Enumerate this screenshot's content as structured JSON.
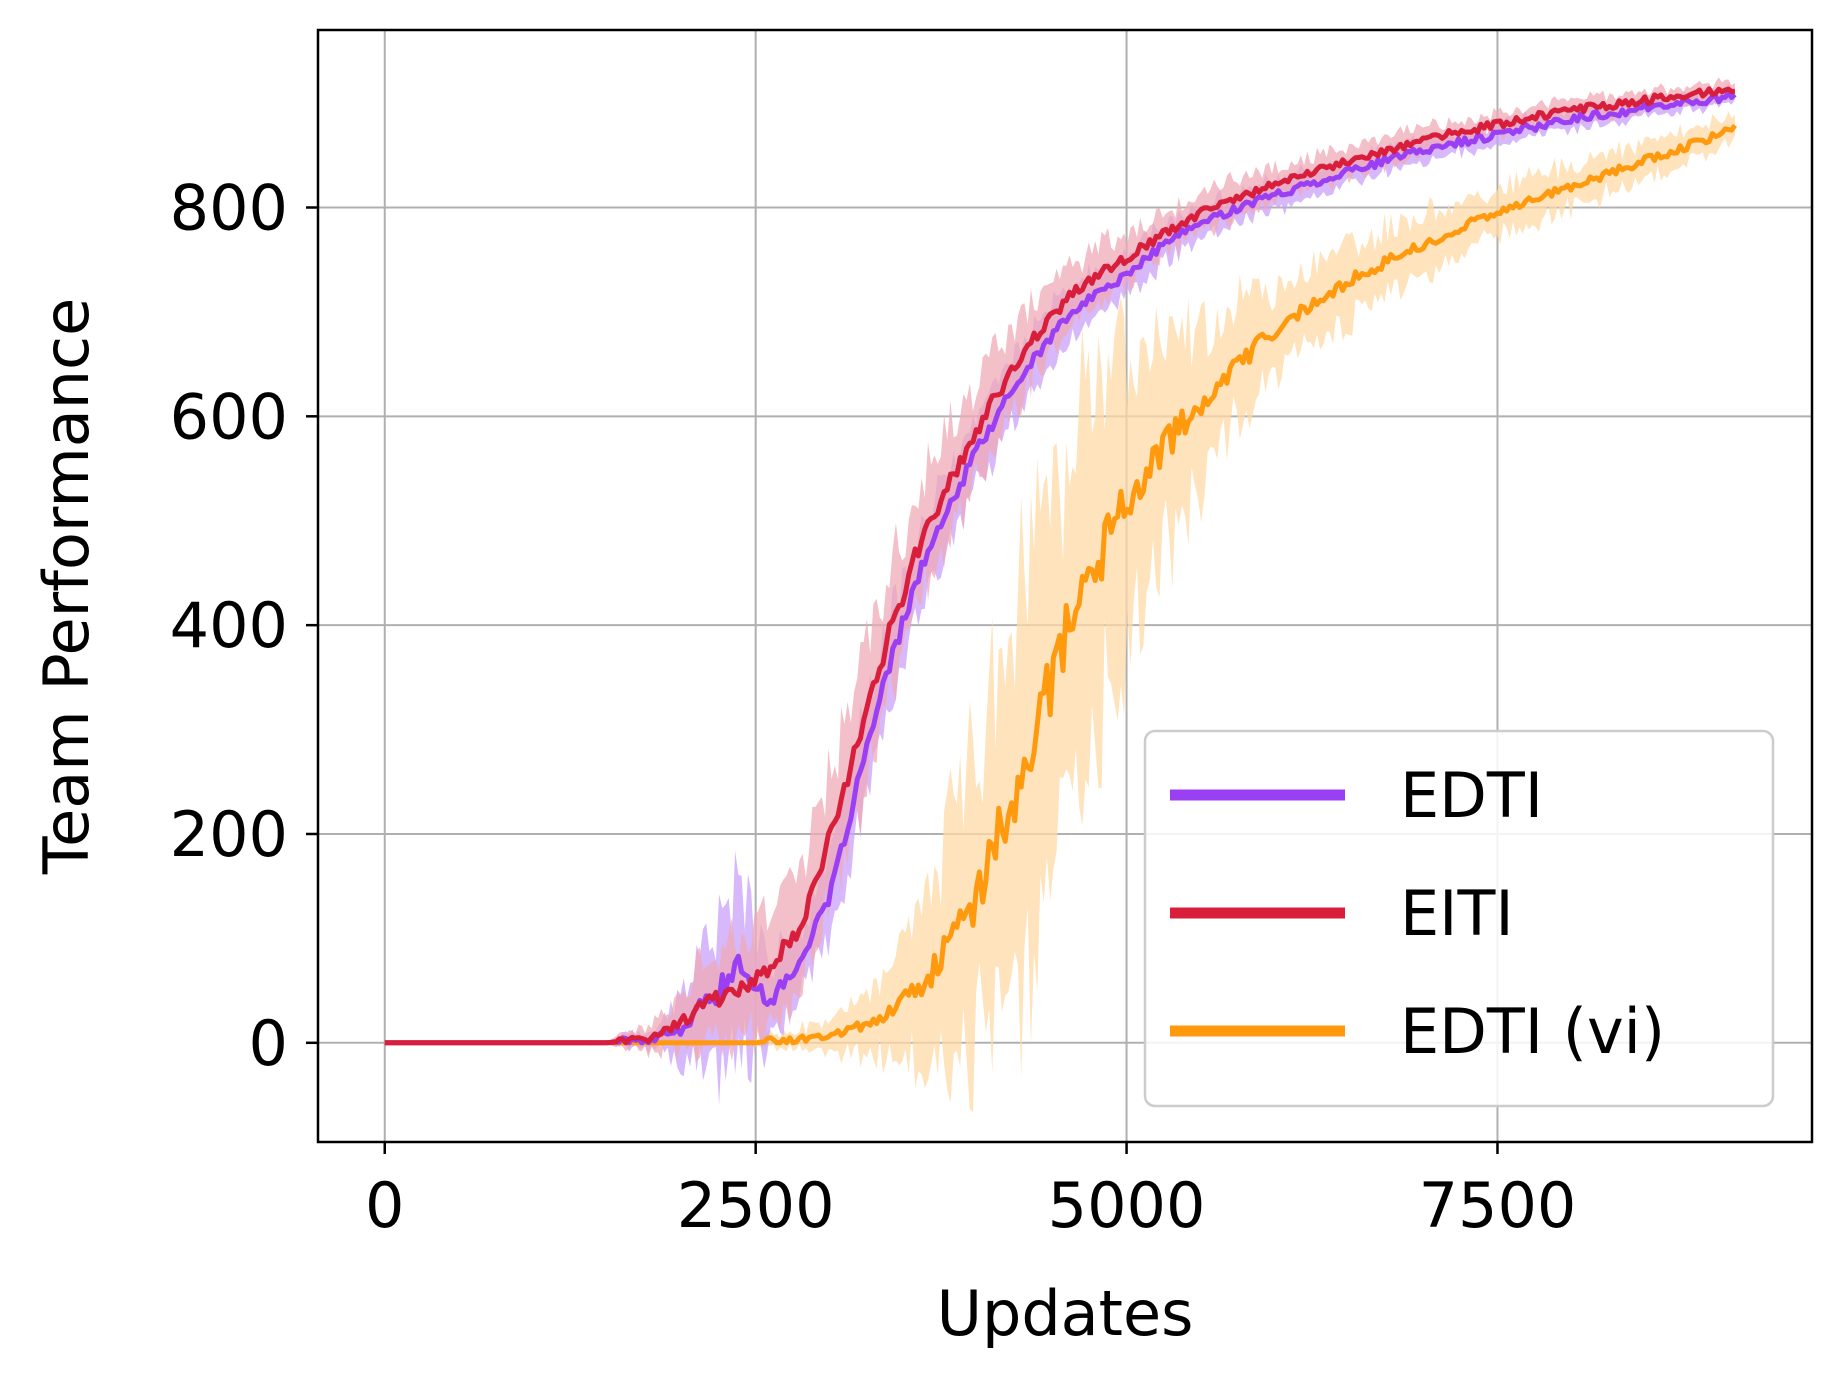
{
  "chart_data": {
    "type": "line",
    "title": "",
    "xlabel": "Updates",
    "ylabel": "Team Performance",
    "xlim": [
      -450,
      9620
    ],
    "ylim": [
      -95,
      970
    ],
    "xticks": [
      0,
      2500,
      5000,
      7500
    ],
    "xtick_labels": [
      "0",
      "2500",
      "5000",
      "7500"
    ],
    "yticks": [
      0,
      200,
      400,
      600,
      800
    ],
    "ytick_labels": [
      "0",
      "200",
      "400",
      "600",
      "800"
    ],
    "grid": true,
    "legend_position": "lower right",
    "shaded_bands": true,
    "series": [
      {
        "name": "EDTI",
        "color": "#9b3ff5",
        "band_color": "#c9a0fa",
        "x": [
          0,
          1500,
          1800,
          2000,
          2200,
          2400,
          2600,
          2800,
          3000,
          3200,
          3400,
          3600,
          3800,
          4000,
          4200,
          4400,
          4600,
          4800,
          5000,
          5250,
          5500,
          5750,
          6000,
          6500,
          7000,
          7500,
          8000,
          8500,
          9000,
          9100
        ],
        "y": [
          0,
          0,
          3,
          12,
          45,
          72,
          40,
          78,
          140,
          255,
          360,
          450,
          510,
          570,
          618,
          660,
          695,
          718,
          735,
          765,
          785,
          800,
          812,
          835,
          855,
          870,
          885,
          895,
          905,
          908
        ],
        "spread": [
          0,
          2,
          10,
          30,
          70,
          80,
          40,
          30,
          35,
          45,
          45,
          40,
          35,
          35,
          30,
          28,
          25,
          22,
          20,
          18,
          16,
          15,
          14,
          12,
          10,
          10,
          9,
          8,
          7,
          7
        ]
      },
      {
        "name": "EITI",
        "color": "#d81e3a",
        "band_color": "#efaab6",
        "x": [
          0,
          1500,
          1800,
          2000,
          2200,
          2400,
          2600,
          2800,
          3000,
          3200,
          3400,
          3600,
          3800,
          4000,
          4200,
          4400,
          4600,
          4800,
          5000,
          5250,
          5500,
          5750,
          6000,
          6500,
          7000,
          7500,
          8000,
          8500,
          9000,
          9100
        ],
        "y": [
          0,
          0,
          5,
          20,
          40,
          55,
          70,
          115,
          195,
          290,
          390,
          475,
          535,
          590,
          638,
          680,
          713,
          735,
          752,
          775,
          795,
          810,
          822,
          845,
          865,
          880,
          893,
          903,
          912,
          915
        ],
        "spread": [
          0,
          2,
          12,
          30,
          45,
          50,
          55,
          60,
          60,
          65,
          60,
          55,
          50,
          45,
          40,
          35,
          30,
          28,
          25,
          22,
          20,
          18,
          16,
          14,
          12,
          10,
          10,
          9,
          8,
          8
        ]
      },
      {
        "name": "EDTI (vi)",
        "color": "#ff9a0f",
        "band_color": "#fdd9a6",
        "x": [
          0,
          2500,
          2800,
          3000,
          3300,
          3500,
          3700,
          3900,
          4100,
          4300,
          4500,
          4700,
          4900,
          5100,
          5300,
          5500,
          5700,
          5900,
          6100,
          6300,
          6500,
          6800,
          7100,
          7400,
          7700,
          8000,
          8300,
          8600,
          8900,
          9100
        ],
        "y": [
          0,
          0,
          4,
          8,
          20,
          40,
          70,
          115,
          180,
          270,
          350,
          430,
          490,
          540,
          580,
          615,
          645,
          670,
          692,
          712,
          730,
          752,
          770,
          790,
          805,
          820,
          835,
          850,
          865,
          875
        ],
        "spread": [
          0,
          3,
          10,
          15,
          30,
          50,
          90,
          130,
          180,
          200,
          190,
          170,
          150,
          120,
          95,
          75,
          60,
          50,
          42,
          38,
          35,
          30,
          28,
          25,
          22,
          20,
          18,
          16,
          14,
          12
        ]
      }
    ],
    "legend": [
      "EDTI",
      "EITI",
      "EDTI (vi)"
    ]
  }
}
